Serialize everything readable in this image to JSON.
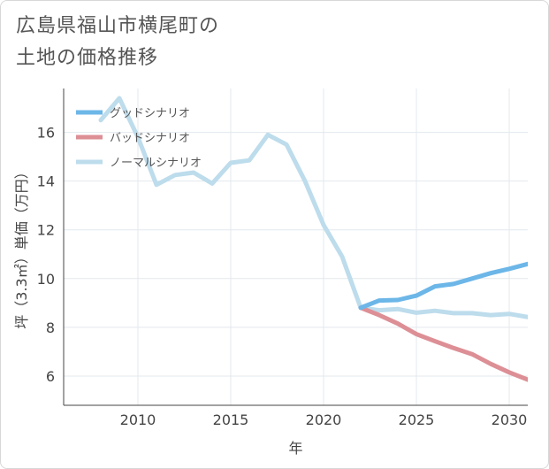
{
  "chart_data": {
    "type": "line",
    "title": "広島県福山市横尾町の\n土地の価格推移",
    "xlabel": "年",
    "ylabel": "坪（3.3㎡）単価（万円）",
    "xlim": [
      2006,
      2031
    ],
    "ylim": [
      4.8,
      17.8
    ],
    "x_ticks": [
      2010,
      2015,
      2020,
      2025,
      2030
    ],
    "y_ticks": [
      6,
      8,
      10,
      12,
      14,
      16
    ],
    "legend_position": "top-left",
    "series": [
      {
        "name": "グッドシナリオ",
        "color": "#6cb6e8",
        "x": [
          2022,
          2023,
          2024,
          2025,
          2026,
          2027,
          2028,
          2029,
          2030,
          2031
        ],
        "values": [
          8.8,
          9.1,
          9.12,
          9.3,
          9.68,
          9.78,
          10.0,
          10.22,
          10.4,
          10.6
        ]
      },
      {
        "name": "バッドシナリオ",
        "color": "#dd8f96",
        "x": [
          2022,
          2023,
          2024,
          2025,
          2026,
          2027,
          2028,
          2029,
          2030,
          2031
        ],
        "values": [
          8.8,
          8.5,
          8.15,
          7.72,
          7.43,
          7.15,
          6.9,
          6.5,
          6.15,
          5.85
        ]
      },
      {
        "name": "ノーマルシナリオ",
        "color": "#bddcec",
        "x": [
          2008,
          2009,
          2010,
          2011,
          2012,
          2013,
          2014,
          2015,
          2016,
          2017,
          2018,
          2019,
          2020,
          2021,
          2022,
          2023,
          2024,
          2025,
          2026,
          2027,
          2028,
          2029,
          2030,
          2031
        ],
        "values": [
          16.5,
          17.4,
          15.8,
          13.85,
          14.25,
          14.35,
          13.9,
          14.75,
          14.85,
          15.9,
          15.5,
          14.0,
          12.2,
          10.9,
          8.8,
          8.7,
          8.75,
          8.6,
          8.68,
          8.58,
          8.58,
          8.5,
          8.55,
          8.42
        ]
      }
    ]
  }
}
